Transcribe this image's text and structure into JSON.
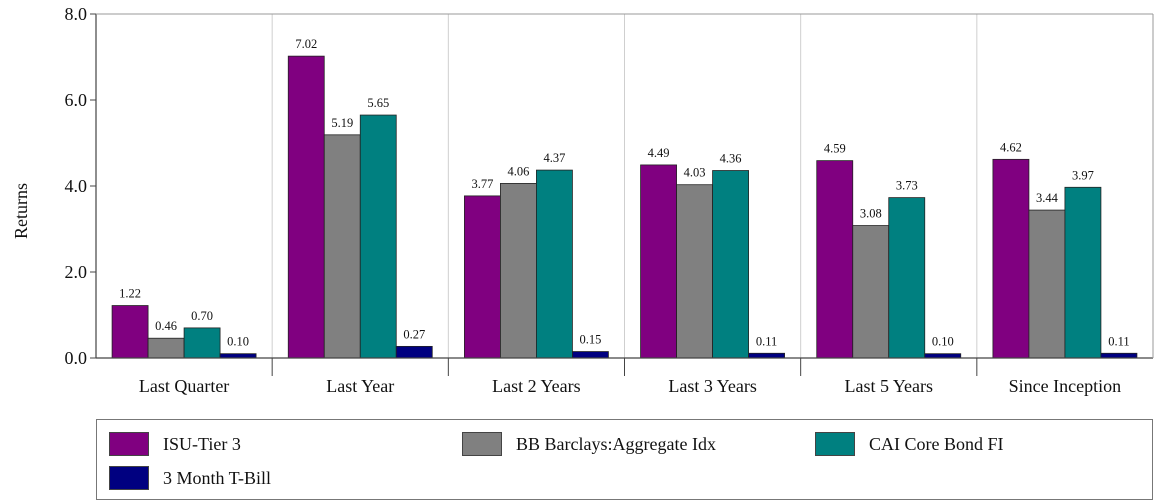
{
  "chart_data": {
    "type": "bar",
    "ylabel": "Returns",
    "ylim": [
      0,
      8
    ],
    "yticks": [
      "0.0",
      "2.0",
      "4.0",
      "6.0",
      "8.0"
    ],
    "categories": [
      "Last Quarter",
      "Last Year",
      "Last 2 Years",
      "Last 3 Years",
      "Last 5 Years",
      "Since Inception"
    ],
    "series": [
      {
        "name": "ISU-Tier 3",
        "color": "#800080",
        "values": [
          1.22,
          7.02,
          3.77,
          4.49,
          4.59,
          4.62
        ],
        "labels": [
          "1.22",
          "7.02",
          "3.77",
          "4.49",
          "4.59",
          "4.62"
        ]
      },
      {
        "name": "BB Barclays:Aggregate Idx",
        "color": "#808080",
        "values": [
          0.46,
          5.19,
          4.06,
          4.03,
          3.08,
          3.44
        ],
        "labels": [
          "0.46",
          "5.19",
          "4.06",
          "4.03",
          "3.08",
          "3.44"
        ]
      },
      {
        "name": "CAI Core Bond FI",
        "color": "#008080",
        "values": [
          0.7,
          5.65,
          4.37,
          4.36,
          3.73,
          3.97
        ],
        "labels": [
          "0.70",
          "5.65",
          "4.37",
          "4.36",
          "3.73",
          "3.97"
        ]
      },
      {
        "name": "3 Month T-Bill",
        "color": "#000080",
        "values": [
          0.1,
          0.27,
          0.15,
          0.11,
          0.1,
          0.11
        ],
        "labels": [
          "0.10",
          "0.27",
          "0.15",
          "0.11",
          "0.10",
          "0.11"
        ]
      }
    ],
    "grid": "vertical separators between categories",
    "legend_position": "bottom"
  }
}
